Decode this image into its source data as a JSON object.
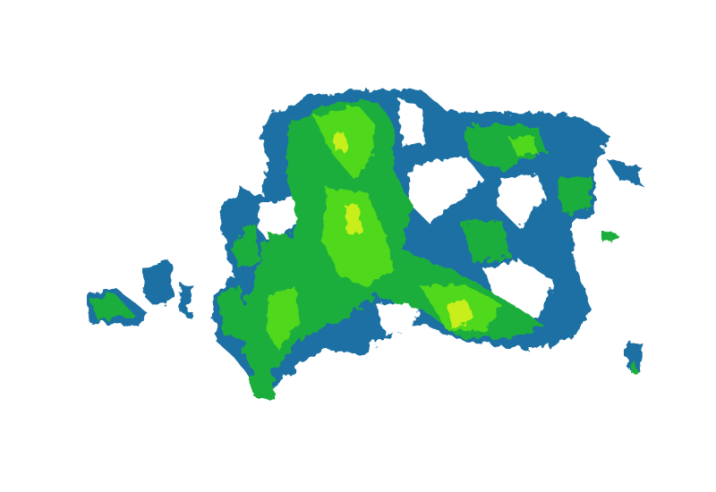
{
  "map": {
    "layer": "precipitation-radar",
    "colors": {
      "background": "#ffffff",
      "light": "#1f6fa3",
      "moderate": "#1fae3c",
      "heavy": "#4fd81c",
      "intense": "#c8ee1e"
    }
  }
}
